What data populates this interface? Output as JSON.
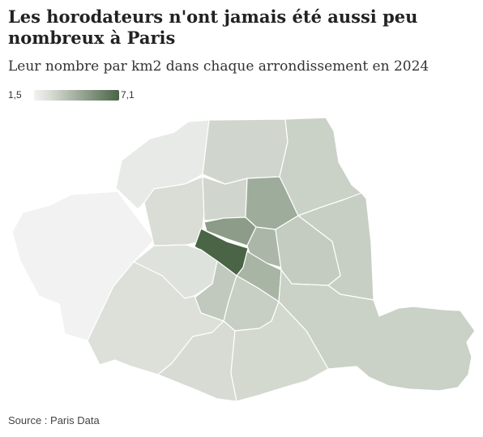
{
  "title": "Les horodateurs n'ont jamais été aussi peu nombreux à Paris",
  "subtitle": "Leur nombre par km2 dans chaque arrondissement en 2024",
  "legend": {
    "min_label": "1,5",
    "max_label": "7,1",
    "color_low": "#f2f2f2",
    "color_high": "#4a6446"
  },
  "source": "Source : Paris Data",
  "chart_data": {
    "type": "choropleth",
    "metric": "horodateurs par km2",
    "year": 2024,
    "scale": {
      "min": 1.5,
      "max": 7.1
    },
    "regions": [
      {
        "id": "1",
        "value": 7.1
      },
      {
        "id": "2",
        "value": 5.0
      },
      {
        "id": "3",
        "value": 4.0
      },
      {
        "id": "4",
        "value": 4.1
      },
      {
        "id": "5",
        "value": 3.1
      },
      {
        "id": "6",
        "value": 3.3
      },
      {
        "id": "7",
        "value": 2.3
      },
      {
        "id": "8",
        "value": 2.5
      },
      {
        "id": "9",
        "value": 2.8
      },
      {
        "id": "10",
        "value": 4.4
      },
      {
        "id": "11",
        "value": 3.2
      },
      {
        "id": "12",
        "value": 3.0
      },
      {
        "id": "13",
        "value": 2.7
      },
      {
        "id": "14",
        "value": 2.6
      },
      {
        "id": "15",
        "value": 2.4
      },
      {
        "id": "16",
        "value": 1.5
      },
      {
        "id": "17",
        "value": 1.9
      },
      {
        "id": "18",
        "value": 2.8
      },
      {
        "id": "19",
        "value": 3.0
      },
      {
        "id": "20",
        "value": 3.1
      }
    ]
  }
}
